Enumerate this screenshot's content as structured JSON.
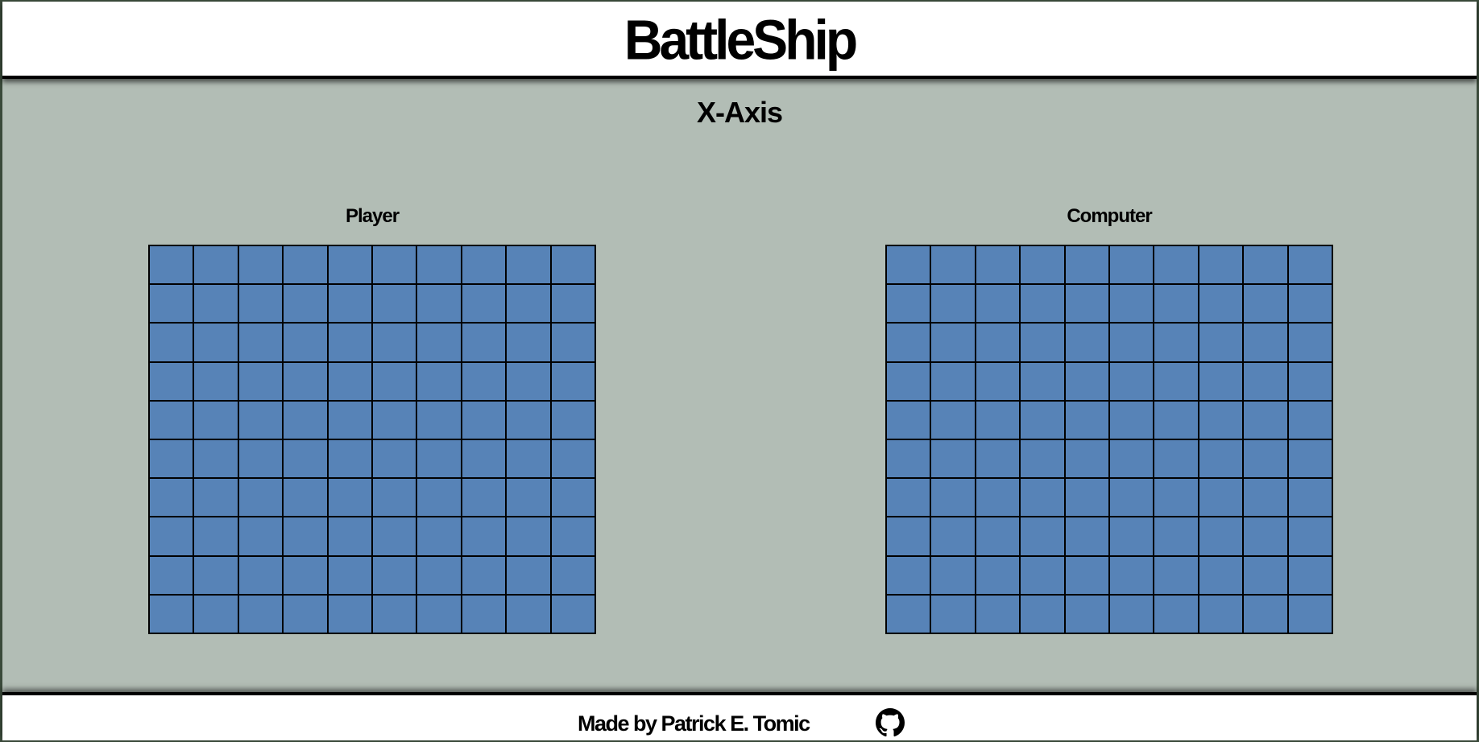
{
  "header": {
    "title": "BattleShip"
  },
  "main": {
    "axis_label": "X-Axis"
  },
  "boards": {
    "player": {
      "label": "Player",
      "rows": 10,
      "cols": 10
    },
    "computer": {
      "label": "Computer",
      "rows": 10,
      "cols": 10
    }
  },
  "footer": {
    "credit": "Made by Patrick E. Tomic",
    "link_icon": "github-icon"
  },
  "colors": {
    "water": "#5783b7",
    "background": "#b2bdb5",
    "grid_line": "#000000"
  }
}
